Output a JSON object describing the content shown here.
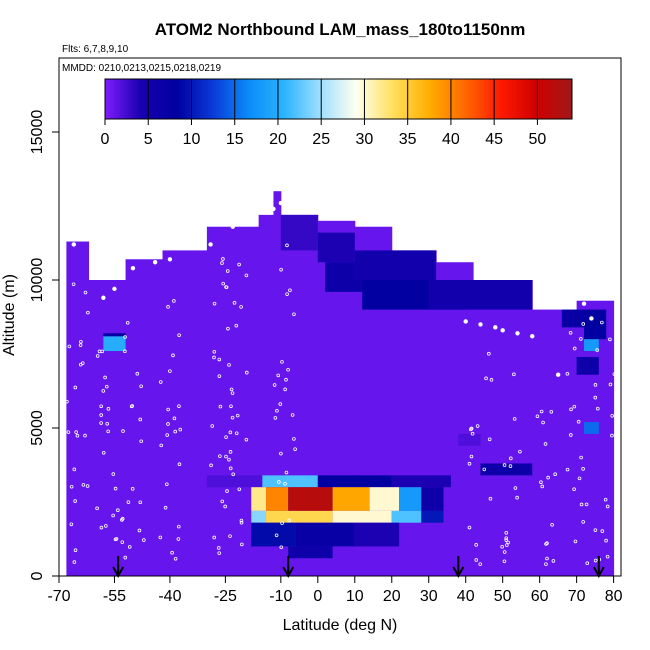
{
  "chart_data": {
    "type": "heatmap",
    "title": "ATOM2 Northbound LAM_mass_180to1150nm",
    "subtitle_flights": "Flts: 6,7,8,9,10",
    "subtitle_dates": "MMDD: 0210,0213,0215,0218,0219",
    "xlabel": "Latitude (deg N)",
    "ylabel": "Altitude (m)",
    "xlim": [
      -70,
      82
    ],
    "ylim": [
      0,
      17500
    ],
    "xticks": [
      -70,
      -55,
      -40,
      -25,
      -10,
      0,
      10,
      20,
      30,
      40,
      50,
      60,
      70,
      80
    ],
    "xtick_labels": [
      "-70",
      "-55",
      "-40",
      "-25",
      "-10",
      "0",
      "10",
      "20",
      "30",
      "40",
      "50",
      "60",
      "70",
      "80"
    ],
    "yticks": [
      0,
      5000,
      10000,
      15000
    ],
    "ytick_labels": [
      "0",
      "5000",
      "10000",
      "15000"
    ],
    "colorbar": {
      "min": 0,
      "max": 54,
      "ticks": [
        0,
        5,
        10,
        15,
        20,
        25,
        30,
        35,
        40,
        45,
        50
      ],
      "tick_labels": [
        "0",
        "5",
        "10",
        "15",
        "20",
        "25",
        "30",
        "35",
        "40",
        "45",
        "50"
      ],
      "colors": [
        "#7f1cff",
        "#1800b0",
        "#0000a0",
        "#0a3ad8",
        "#0a8cf8",
        "#2cb4ff",
        "#a0e0ff",
        "#fffff0",
        "#ffe060",
        "#ffb000",
        "#ff6a00",
        "#ff1a00",
        "#d00000",
        "#a01818"
      ]
    },
    "background_value": 1,
    "coverage": [
      {
        "lat0": -68,
        "lat1": -62,
        "alt0": 0,
        "alt1": 11300
      },
      {
        "lat0": -62,
        "lat1": -52,
        "alt0": 0,
        "alt1": 10000
      },
      {
        "lat0": -52,
        "lat1": -42,
        "alt0": 0,
        "alt1": 10700
      },
      {
        "lat0": -42,
        "lat1": -30,
        "alt0": 0,
        "alt1": 11000
      },
      {
        "lat0": -30,
        "lat1": -16,
        "alt0": 0,
        "alt1": 11800
      },
      {
        "lat0": -16,
        "lat1": -12,
        "alt0": 0,
        "alt1": 12200
      },
      {
        "lat0": -12,
        "lat1": -10,
        "alt0": 0,
        "alt1": 13000
      },
      {
        "lat0": -10,
        "lat1": 0,
        "alt0": 0,
        "alt1": 12200
      },
      {
        "lat0": 0,
        "lat1": 10,
        "alt0": 0,
        "alt1": 12000
      },
      {
        "lat0": 10,
        "lat1": 20,
        "alt0": 0,
        "alt1": 11800
      },
      {
        "lat0": 20,
        "lat1": 32,
        "alt0": 0,
        "alt1": 11000
      },
      {
        "lat0": 32,
        "lat1": 42,
        "alt0": 0,
        "alt1": 10600
      },
      {
        "lat0": 42,
        "lat1": 58,
        "alt0": 0,
        "alt1": 10000
      },
      {
        "lat0": 58,
        "lat1": 70,
        "alt0": 0,
        "alt1": 9000
      },
      {
        "lat0": 70,
        "lat1": 80,
        "alt0": 0,
        "alt1": 9300
      }
    ],
    "cells": [
      {
        "lat0": -58,
        "lat1": -52,
        "alt0": 7600,
        "alt1": 8100,
        "value": 20
      },
      {
        "lat0": -58,
        "lat1": -52,
        "alt0": 8100,
        "alt1": 8200,
        "value": 8
      },
      {
        "lat0": -10,
        "lat1": 0,
        "alt0": 11000,
        "alt1": 12200,
        "value": 3
      },
      {
        "lat0": 0,
        "lat1": 10,
        "alt0": 10600,
        "alt1": 11600,
        "value": 4
      },
      {
        "lat0": 2,
        "lat1": 20,
        "alt0": 9600,
        "alt1": 10600,
        "value": 6
      },
      {
        "lat0": 10,
        "lat1": 32,
        "alt0": 10000,
        "alt1": 11000,
        "value": 5
      },
      {
        "lat0": 12,
        "lat1": 40,
        "alt0": 9000,
        "alt1": 10000,
        "value": 8
      },
      {
        "lat0": 30,
        "lat1": 58,
        "alt0": 9000,
        "alt1": 10000,
        "value": 5
      },
      {
        "lat0": 66,
        "lat1": 72,
        "alt0": 8400,
        "alt1": 9000,
        "value": 7
      },
      {
        "lat0": 72,
        "lat1": 78,
        "alt0": 8000,
        "alt1": 9000,
        "value": 8
      },
      {
        "lat0": 72,
        "lat1": 76,
        "alt0": 7600,
        "alt1": 8000,
        "value": 18
      },
      {
        "lat0": 70,
        "lat1": 76,
        "alt0": 6800,
        "alt1": 7400,
        "value": 6
      },
      {
        "lat0": 72,
        "lat1": 76,
        "alt0": 4800,
        "alt1": 5200,
        "value": 15
      },
      {
        "lat0": 38,
        "lat1": 44,
        "alt0": 4400,
        "alt1": 4800,
        "value": 2
      },
      {
        "lat0": 44,
        "lat1": 58,
        "alt0": 3400,
        "alt1": 3800,
        "value": 6
      },
      {
        "lat0": -30,
        "lat1": -15,
        "alt0": 3000,
        "alt1": 3400,
        "value": 2
      },
      {
        "lat0": -15,
        "lat1": 0,
        "alt0": 3000,
        "alt1": 3400,
        "value": 22
      },
      {
        "lat0": 0,
        "lat1": 20,
        "alt0": 3000,
        "alt1": 3400,
        "value": 8
      },
      {
        "lat0": 20,
        "lat1": 36,
        "alt0": 3000,
        "alt1": 3400,
        "value": 4
      },
      {
        "lat0": -18,
        "lat1": -14,
        "alt0": 2200,
        "alt1": 3000,
        "value": 32
      },
      {
        "lat0": -14,
        "lat1": -8,
        "alt0": 2200,
        "alt1": 3000,
        "value": 40
      },
      {
        "lat0": -8,
        "lat1": 4,
        "alt0": 2200,
        "alt1": 3000,
        "value": 52
      },
      {
        "lat0": 4,
        "lat1": 14,
        "alt0": 2200,
        "alt1": 3000,
        "value": 38
      },
      {
        "lat0": 14,
        "lat1": 22,
        "alt0": 2200,
        "alt1": 3000,
        "value": 30
      },
      {
        "lat0": 22,
        "lat1": 28,
        "alt0": 2200,
        "alt1": 3000,
        "value": 18
      },
      {
        "lat0": 28,
        "lat1": 34,
        "alt0": 2200,
        "alt1": 3000,
        "value": 6
      },
      {
        "lat0": -18,
        "lat1": -14,
        "alt0": 1800,
        "alt1": 2200,
        "value": 24
      },
      {
        "lat0": -14,
        "lat1": 4,
        "alt0": 1800,
        "alt1": 2200,
        "value": 34
      },
      {
        "lat0": 4,
        "lat1": 20,
        "alt0": 1800,
        "alt1": 2200,
        "value": 30
      },
      {
        "lat0": 20,
        "lat1": 28,
        "alt0": 1800,
        "alt1": 2200,
        "value": 22
      },
      {
        "lat0": 28,
        "lat1": 34,
        "alt0": 1800,
        "alt1": 2200,
        "value": 10
      },
      {
        "lat0": -18,
        "lat1": -6,
        "alt0": 1000,
        "alt1": 1800,
        "value": 9
      },
      {
        "lat0": -6,
        "lat1": 10,
        "alt0": 1000,
        "alt1": 1800,
        "value": 7
      },
      {
        "lat0": 10,
        "lat1": 22,
        "alt0": 1000,
        "alt1": 1800,
        "value": 4
      },
      {
        "lat0": -8,
        "lat1": 4,
        "alt0": 600,
        "alt1": 1000,
        "value": 6
      }
    ],
    "flight_track": [
      [
        -66,
        11200
      ],
      [
        -64,
        11500
      ],
      [
        -58,
        9400
      ],
      [
        -55,
        9700
      ],
      [
        -50,
        10400
      ],
      [
        -44,
        10600
      ],
      [
        -40,
        10700
      ],
      [
        -34,
        11200
      ],
      [
        -29,
        11200
      ],
      [
        -23,
        11800
      ],
      [
        -18,
        11900
      ],
      [
        -12,
        12400
      ],
      [
        -10,
        12600
      ],
      [
        40,
        8600
      ],
      [
        44,
        8500
      ],
      [
        48,
        8400
      ],
      [
        50,
        8300
      ],
      [
        54,
        8200
      ],
      [
        58,
        8100
      ],
      [
        65,
        6800
      ],
      [
        68,
        9600
      ],
      [
        72,
        9200
      ],
      [
        74,
        8700
      ]
    ],
    "vertical_profiles": [
      {
        "lat": -57,
        "alt_min": 400,
        "alt_max": 11100
      },
      {
        "lat": -65,
        "alt_min": 400,
        "alt_max": 10300
      },
      {
        "lat": -50,
        "alt_min": 400,
        "alt_max": 9500
      },
      {
        "lat": -40,
        "alt_min": 500,
        "alt_max": 10200
      },
      {
        "lat": -26,
        "alt_min": 400,
        "alt_max": 11000
      },
      {
        "lat": -22,
        "alt_min": 400,
        "alt_max": 11400
      },
      {
        "lat": -9,
        "alt_min": 400,
        "alt_max": 11600
      },
      {
        "lat": 44,
        "alt_min": 400,
        "alt_max": 7800
      },
      {
        "lat": 52,
        "alt_min": 400,
        "alt_max": 7600
      },
      {
        "lat": 62,
        "alt_min": 400,
        "alt_max": 7000
      },
      {
        "lat": 70,
        "alt_min": 400,
        "alt_max": 8800
      },
      {
        "lat": 78,
        "alt_min": 400,
        "alt_max": 9000
      }
    ],
    "arrows_at_lat": [
      -54,
      -8,
      38,
      76
    ]
  }
}
